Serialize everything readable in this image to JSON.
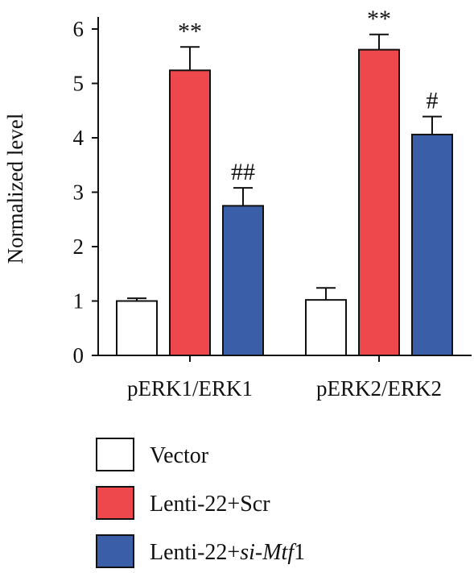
{
  "chart_data": {
    "type": "bar",
    "ylabel": "Normalized level",
    "ylim": [
      0,
      6
    ],
    "yticks": [
      0,
      1,
      2,
      3,
      4,
      5,
      6
    ],
    "categories": [
      "pERK1/ERK1",
      "pERK2/ERK2"
    ],
    "series": [
      {
        "name": "Vector",
        "color": "#ffffff",
        "values": [
          1.0,
          1.02
        ],
        "errors": [
          0.05,
          0.22
        ],
        "annotations": [
          "",
          ""
        ]
      },
      {
        "name": "Lenti-22+Scr",
        "color": "#ef484c",
        "values": [
          5.24,
          5.62
        ],
        "errors": [
          0.43,
          0.28
        ],
        "annotations": [
          "**",
          "**"
        ]
      },
      {
        "name": "Lenti-22+si-Mtf1",
        "name_parts": [
          "Lenti-22+",
          "si-Mtf",
          "1"
        ],
        "color": "#3a5ea8",
        "values": [
          2.75,
          4.06
        ],
        "errors": [
          0.33,
          0.33
        ],
        "annotations": [
          "##",
          "#"
        ]
      }
    ],
    "legend_position": "bottom-left",
    "grid": false
  }
}
